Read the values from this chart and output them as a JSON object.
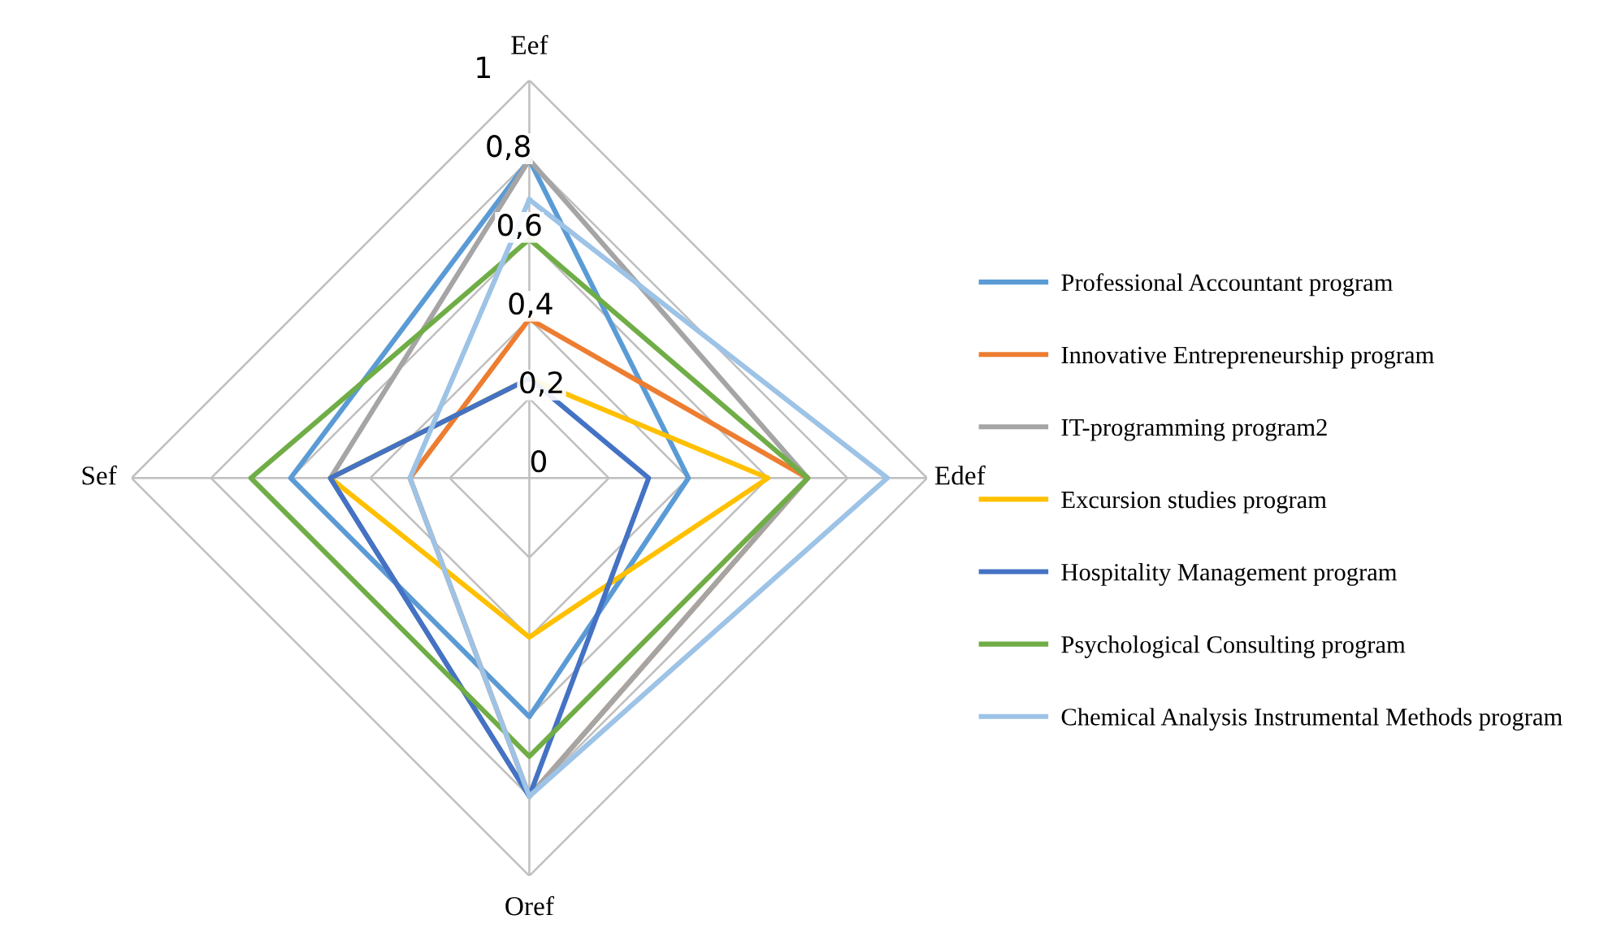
{
  "chart_data": {
    "type": "radar",
    "categories": [
      "Eef",
      "Edef",
      "Oref",
      "Sef"
    ],
    "ylim": [
      0,
      1
    ],
    "yticks": [
      0,
      {
        "value": 0.2,
        "label": "0,2"
      },
      {
        "value": 0.4,
        "label": "0,4"
      },
      {
        "value": 0.6,
        "label": "0,6"
      },
      {
        "value": 0.8,
        "label": "0,8"
      },
      1
    ],
    "grid": true,
    "legend": "right",
    "marker": "none",
    "line_style": "solid",
    "series": [
      {
        "name": "Professional Accountant program",
        "color": "#5b9bd5",
        "values": [
          0.8,
          0.4,
          0.6,
          0.6
        ]
      },
      {
        "name": "Innovative Entrepreneurship program",
        "color": "#ed7d31",
        "values": [
          0.4,
          0.7,
          0.8,
          0.3
        ]
      },
      {
        "name": "IT-programming program2",
        "color": "#a5a5a5",
        "values": [
          0.8,
          0.7,
          0.8,
          0.5
        ]
      },
      {
        "name": "Excursion studies program",
        "color": "#ffc000",
        "values": [
          0.25,
          0.6,
          0.4,
          0.5
        ]
      },
      {
        "name": "Hospitality Management program",
        "color": "#4472c4",
        "values": [
          0.25,
          0.3,
          0.8,
          0.5
        ]
      },
      {
        "name": "Psychological Consulting program",
        "color": "#70ad47",
        "values": [
          0.6,
          0.7,
          0.7,
          0.7
        ]
      },
      {
        "name": "Chemical Analysis Instrumental Methods program",
        "color": "#9dc3e6",
        "values": [
          0.7,
          0.9,
          0.8,
          0.3
        ]
      }
    ]
  }
}
